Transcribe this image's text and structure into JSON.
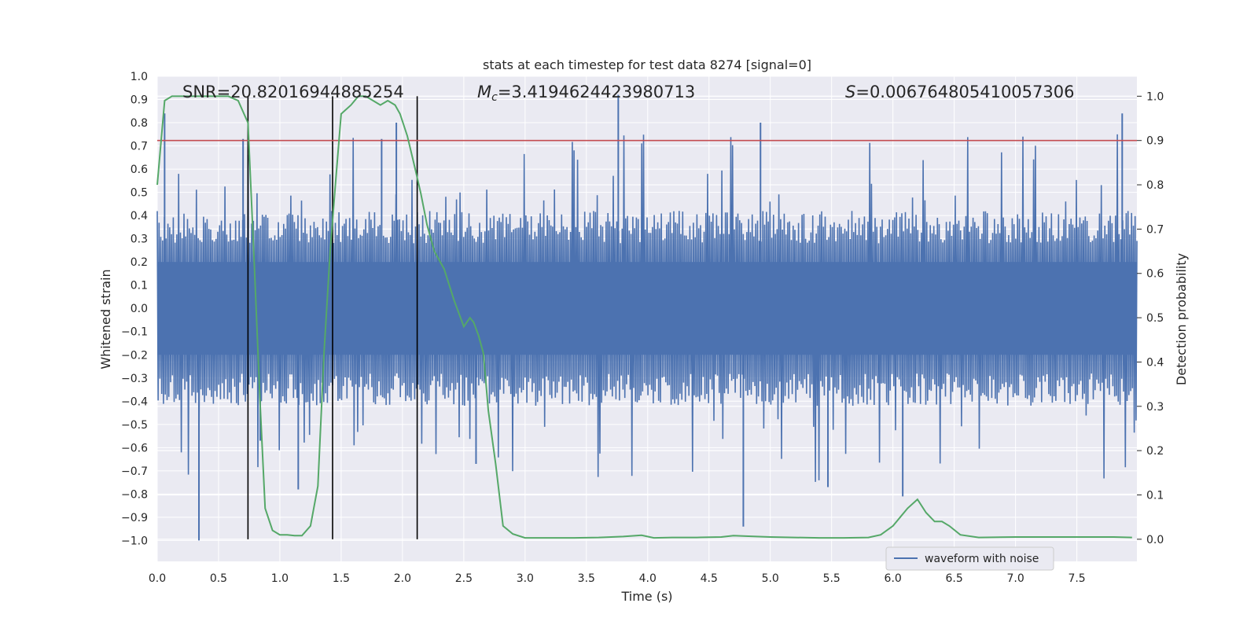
{
  "chart_data": {
    "type": "line",
    "title": "stats at each timestep for test data 8274 [signal=0]",
    "xlabel": "Time (s)",
    "ylabel_left": "Whitened strain",
    "ylabel_right": "Detection probability",
    "xlim": [
      0,
      7.99
    ],
    "ylim_left": [
      -1.09,
      1.0
    ],
    "ylim_right": [
      -0.05,
      1.045
    ],
    "xticks": [
      "0.0",
      "0.5",
      "1.0",
      "1.5",
      "2.0",
      "2.5",
      "3.0",
      "3.5",
      "4.0",
      "4.5",
      "5.0",
      "5.5",
      "6.0",
      "6.5",
      "7.0",
      "7.5"
    ],
    "yticks_left": [
      "1.0",
      "0.9",
      "0.8",
      "0.7",
      "0.6",
      "0.5",
      "0.4",
      "0.3",
      "0.2",
      "0.1",
      "0.0",
      "−0.1",
      "−0.2",
      "−0.3",
      "−0.4",
      "−0.5",
      "−0.6",
      "−0.7",
      "−0.8",
      "−0.9",
      "−1.0"
    ],
    "yticks_right": [
      "1.0",
      "0.9",
      "0.8",
      "0.7",
      "0.6",
      "0.5",
      "0.4",
      "0.3",
      "0.2",
      "0.1",
      "0.0"
    ],
    "annotations": {
      "snr": "SNR=20.82016944885254",
      "mc_symbol": "M",
      "mc_sub": "c",
      "mc_value": "=3.4194624423980713",
      "s_symbol": "S",
      "s_value": "=0.006764805410057306"
    },
    "threshold": {
      "value": 0.9,
      "color": "#c44e52"
    },
    "vertical_lines": [
      0.74,
      1.43,
      2.12
    ],
    "legend": {
      "label": "waveform with noise",
      "placement": "lower-right"
    },
    "colors": {
      "waveform": "#4c72b0",
      "probability": "#55a868",
      "background": "#eaeaf2",
      "vlines": "#000000"
    },
    "series": [
      {
        "name": "waveform with noise",
        "axis": "left",
        "envelope_note": "dense noise waveform, core band approx ±0.3, occasional spikes to about ±0.9",
        "spikes": [
          {
            "t": 0.06,
            "v": 0.84
          },
          {
            "t": 0.34,
            "v": -1.0
          },
          {
            "t": 0.7,
            "v": 0.73
          },
          {
            "t": 0.84,
            "v": -0.57
          },
          {
            "t": 1.15,
            "v": -0.78
          },
          {
            "t": 1.83,
            "v": 0.73
          },
          {
            "t": 1.95,
            "v": 0.8
          },
          {
            "t": 2.6,
            "v": -0.67
          },
          {
            "t": 3.76,
            "v": 0.92
          },
          {
            "t": 4.78,
            "v": -0.94
          },
          {
            "t": 4.92,
            "v": 0.8
          },
          {
            "t": 5.47,
            "v": -0.77
          },
          {
            "t": 6.08,
            "v": -0.81
          },
          {
            "t": 7.87,
            "v": 0.84
          }
        ]
      },
      {
        "name": "detection probability",
        "axis": "right",
        "x": [
          0.0,
          0.06,
          0.12,
          0.2,
          0.3,
          0.4,
          0.5,
          0.58,
          0.66,
          0.74,
          0.79,
          0.84,
          0.88,
          0.94,
          1.0,
          1.06,
          1.12,
          1.18,
          1.25,
          1.31,
          1.36,
          1.41,
          1.45,
          1.5,
          1.58,
          1.64,
          1.7,
          1.76,
          1.82,
          1.88,
          1.94,
          1.98,
          2.04,
          2.1,
          2.15,
          2.2,
          2.26,
          2.34,
          2.42,
          2.5,
          2.55,
          2.58,
          2.62,
          2.66,
          2.7,
          2.76,
          2.82,
          2.9,
          3.0,
          3.2,
          3.4,
          3.6,
          3.8,
          3.95,
          4.05,
          4.2,
          4.4,
          4.6,
          4.7,
          4.8,
          5.0,
          5.2,
          5.4,
          5.6,
          5.8,
          5.9,
          6.0,
          6.06,
          6.12,
          6.2,
          6.27,
          6.34,
          6.4,
          6.46,
          6.55,
          6.7,
          7.0,
          7.3,
          7.6,
          7.8,
          7.95
        ],
        "y": [
          0.8,
          0.99,
          1.0,
          1.0,
          1.0,
          1.0,
          1.0,
          1.0,
          0.99,
          0.94,
          0.63,
          0.3,
          0.07,
          0.02,
          0.01,
          0.01,
          0.008,
          0.008,
          0.03,
          0.12,
          0.42,
          0.65,
          0.79,
          0.96,
          0.98,
          1.0,
          1.0,
          0.99,
          0.98,
          0.99,
          0.98,
          0.96,
          0.91,
          0.84,
          0.78,
          0.71,
          0.65,
          0.61,
          0.54,
          0.48,
          0.5,
          0.49,
          0.46,
          0.42,
          0.29,
          0.17,
          0.03,
          0.012,
          0.003,
          0.003,
          0.003,
          0.004,
          0.006,
          0.009,
          0.003,
          0.004,
          0.004,
          0.005,
          0.008,
          0.007,
          0.005,
          0.004,
          0.003,
          0.003,
          0.004,
          0.01,
          0.03,
          0.05,
          0.07,
          0.09,
          0.06,
          0.04,
          0.04,
          0.03,
          0.01,
          0.004,
          0.005,
          0.005,
          0.005,
          0.005,
          0.004
        ]
      }
    ]
  }
}
